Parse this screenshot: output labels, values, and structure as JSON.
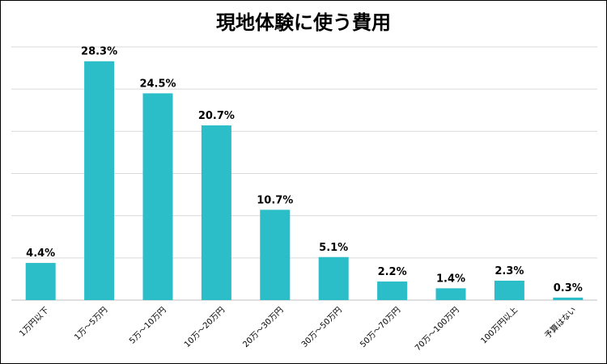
{
  "chart_data": {
    "type": "bar",
    "title": "現地体験に使う費用",
    "categories": [
      "1万円以下",
      "1万～5万円",
      "5万～10万円",
      "10万～20万円",
      "20万～30万円",
      "30万～50万円",
      "50万～70万円",
      "70万～100万円",
      "100万円以上",
      "予算はない"
    ],
    "values": [
      4.4,
      28.3,
      24.5,
      20.7,
      10.7,
      5.1,
      2.2,
      1.4,
      2.3,
      0.3
    ],
    "value_labels": [
      "4.4%",
      "28.3%",
      "24.5%",
      "20.7%",
      "10.7%",
      "5.1%",
      "2.2%",
      "1.4%",
      "2.3%",
      "0.3%"
    ],
    "xlabel": "",
    "ylabel": "",
    "ylim": [
      0,
      30
    ],
    "grid": true,
    "legend": "none",
    "colors": {
      "bar": "#2BBDC8",
      "grid": "#D9D9D9",
      "axis": "#BFBFBF"
    }
  }
}
